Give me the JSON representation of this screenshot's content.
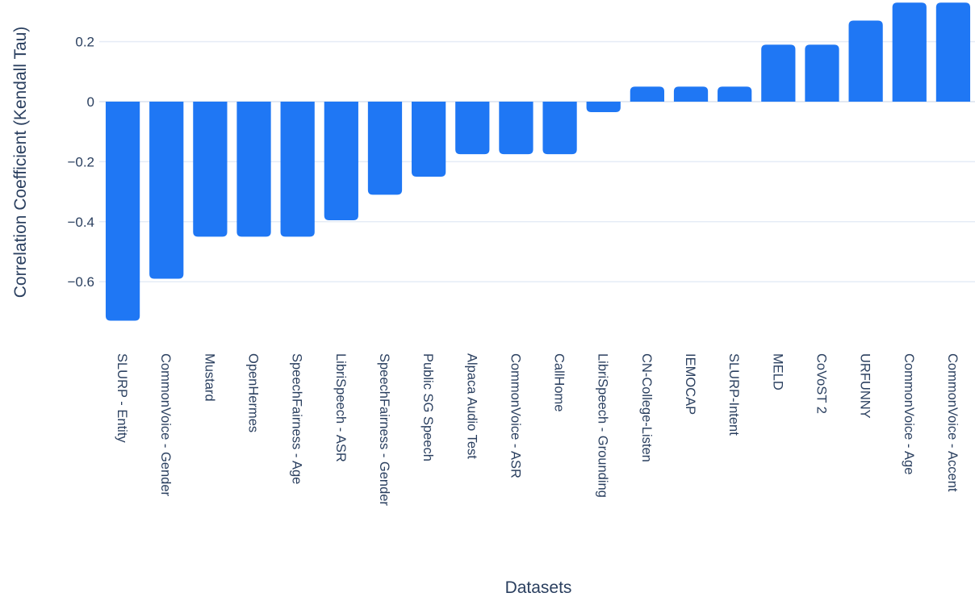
{
  "chart_data": {
    "type": "bar",
    "xlabel": "Datasets",
    "ylabel": "Correlation Coefficient (Kendall Tau)",
    "ylim": [
      -0.78,
      0.33
    ],
    "yticks": [
      0.2,
      0,
      -0.2,
      -0.4,
      -0.6
    ],
    "ytick_labels": [
      "0.2",
      "0",
      "−0.2",
      "−0.4",
      "−0.6"
    ],
    "grid": true,
    "bar_color": "#1f77f4",
    "grid_color": "#e5ecf6",
    "categories": [
      "SLURP - Entity",
      "CommonVoice - Gender",
      "Mustard",
      "OpenHermes",
      "SpeechFairness - Age",
      "LibriSpeech - ASR",
      "SpeechFairness - Gender",
      "Public SG Speech",
      "Alpaca Audio Test",
      "CommonVoice - ASR",
      "CallHome",
      "LibriSpeech - Grounding",
      "CN-College-Listen",
      "IEMOCAP",
      "SLURP-Intent",
      "MELD",
      "CoVoST 2",
      "URFUNNY",
      "CommonVoice - Age",
      "CommonVoice - Accent"
    ],
    "values": [
      -0.73,
      -0.59,
      -0.45,
      -0.45,
      -0.45,
      -0.395,
      -0.31,
      -0.25,
      -0.175,
      -0.175,
      -0.175,
      -0.035,
      0.05,
      0.05,
      0.05,
      0.19,
      0.19,
      0.27,
      0.33,
      0.33
    ]
  }
}
